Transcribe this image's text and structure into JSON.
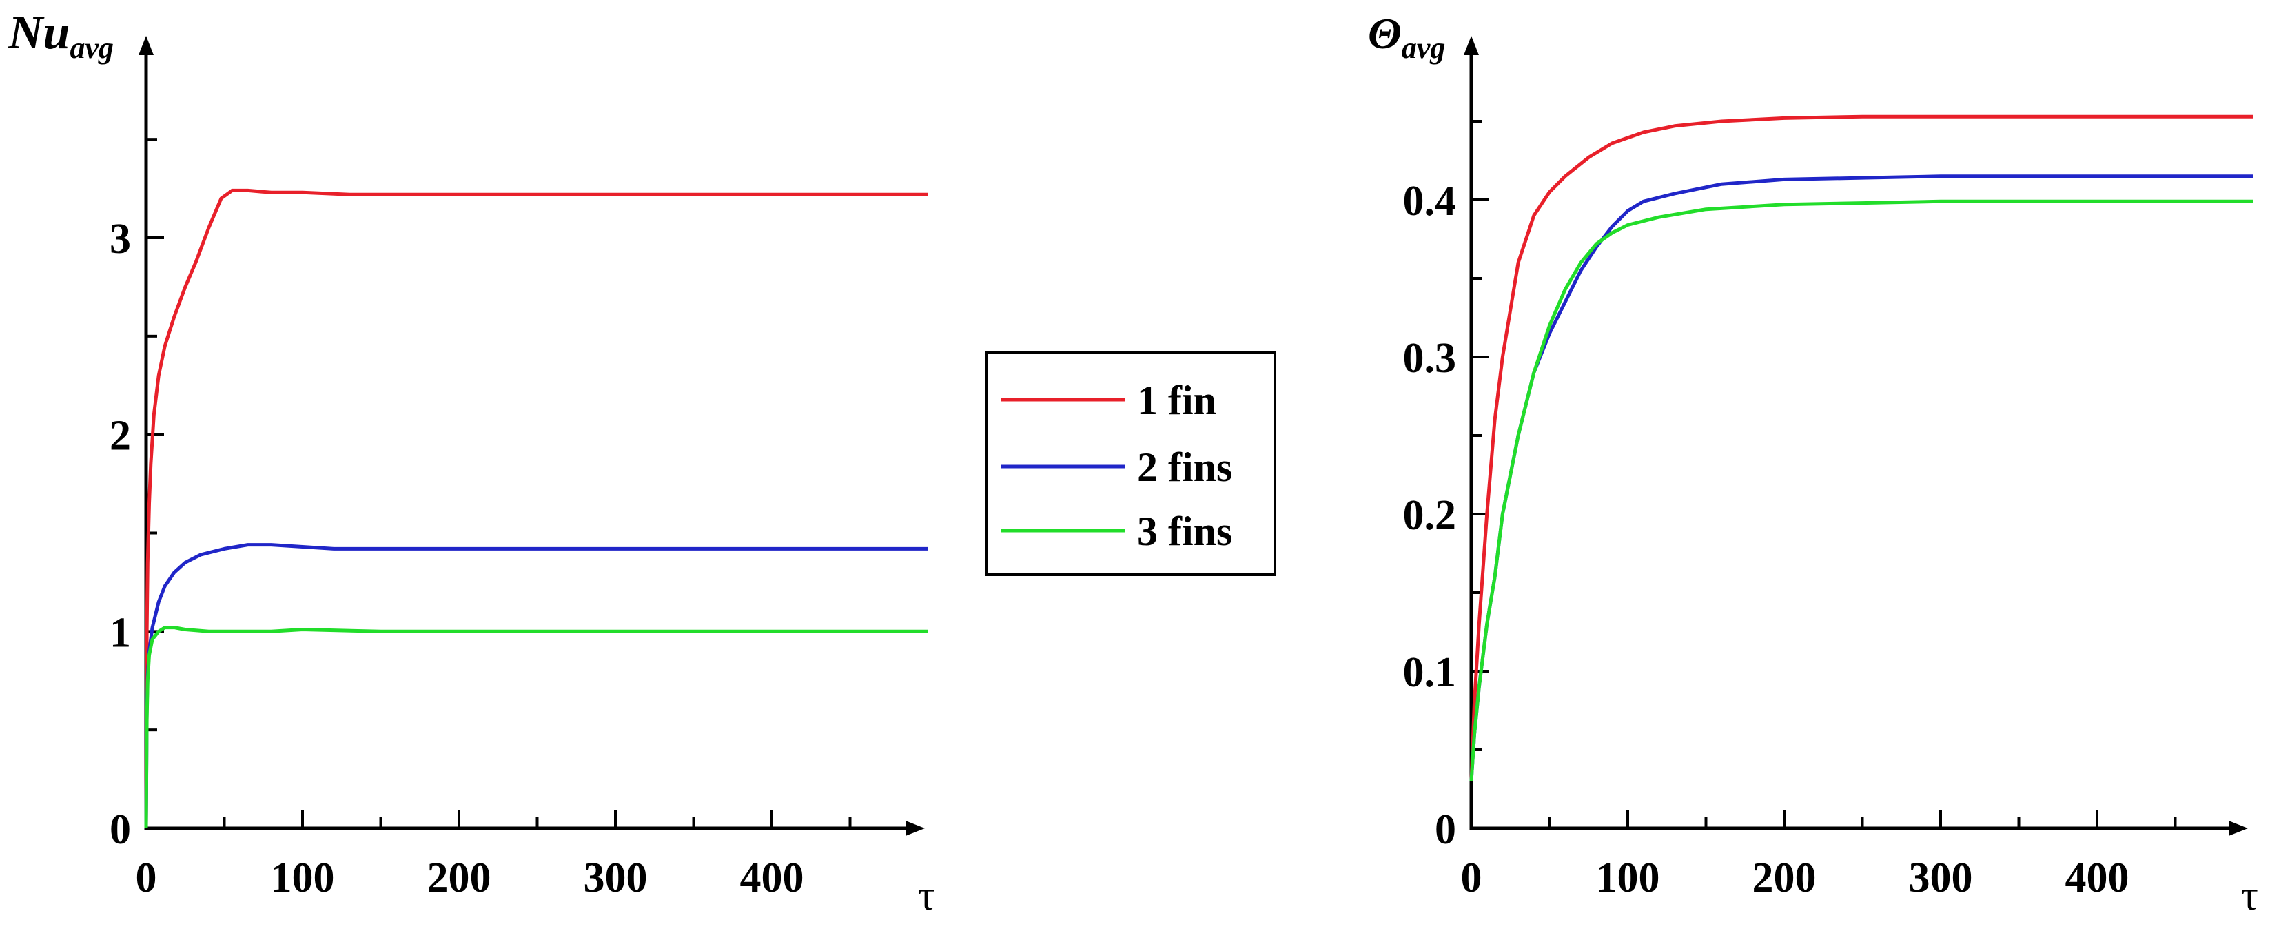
{
  "chart_data": [
    {
      "type": "line",
      "ylabel": "Nu",
      "ylabel_sub": "avg",
      "xlabel": "τ",
      "xlim": [
        0,
        500
      ],
      "ylim": [
        0,
        4
      ],
      "xticks": [
        "0",
        "100",
        "200",
        "300",
        "400"
      ],
      "xtick_values": [
        0,
        100,
        200,
        300,
        400
      ],
      "yticks": [
        "0",
        "1",
        "2",
        "3"
      ],
      "ytick_values": [
        0,
        1,
        2,
        3
      ],
      "series": [
        {
          "name": "1 fin",
          "color": "#e8202a",
          "x": [
            0,
            0.5,
            1,
            2,
            3,
            5,
            8,
            12,
            18,
            25,
            32,
            40,
            48,
            55,
            65,
            80,
            100,
            130,
            200,
            300,
            400,
            500
          ],
          "y": [
            0,
            1.0,
            1.35,
            1.65,
            1.85,
            2.1,
            2.3,
            2.45,
            2.6,
            2.75,
            2.88,
            3.05,
            3.2,
            3.24,
            3.24,
            3.23,
            3.23,
            3.22,
            3.22,
            3.22,
            3.22,
            3.22
          ]
        },
        {
          "name": "2 fins",
          "color": "#2026c8",
          "x": [
            0,
            0.5,
            1,
            2,
            4,
            8,
            12,
            18,
            25,
            35,
            50,
            65,
            80,
            100,
            120,
            150,
            200,
            300,
            400,
            500
          ],
          "y": [
            0,
            0.6,
            0.78,
            0.9,
            1.02,
            1.15,
            1.23,
            1.3,
            1.35,
            1.39,
            1.42,
            1.44,
            1.44,
            1.43,
            1.42,
            1.42,
            1.42,
            1.42,
            1.42,
            1.42
          ]
        },
        {
          "name": "3 fins",
          "color": "#22dd2a",
          "x": [
            0,
            0.5,
            1,
            2,
            4,
            8,
            12,
            18,
            25,
            40,
            60,
            80,
            100,
            150,
            200,
            300,
            400,
            500
          ],
          "y": [
            0,
            0.55,
            0.75,
            0.88,
            0.96,
            1.0,
            1.02,
            1.02,
            1.01,
            1.0,
            1.0,
            1.0,
            1.01,
            1.0,
            1.0,
            1.0,
            1.0,
            1.0
          ]
        }
      ]
    },
    {
      "type": "line",
      "ylabel": "Θ",
      "ylabel_sub": "avg",
      "xlabel": "τ",
      "xlim": [
        0,
        500
      ],
      "ylim": [
        0,
        0.5
      ],
      "xticks": [
        "0",
        "100",
        "200",
        "300",
        "400"
      ],
      "xtick_values": [
        0,
        100,
        200,
        300,
        400
      ],
      "yticks": [
        "0",
        "0.1",
        "0.2",
        "0.3",
        "0.4"
      ],
      "ytick_values": [
        0,
        0.1,
        0.2,
        0.3,
        0.4
      ],
      "series": [
        {
          "name": "1 fin",
          "color": "#e8202a",
          "x": [
            0,
            2,
            5,
            10,
            15,
            20,
            30,
            40,
            50,
            60,
            75,
            90,
            110,
            130,
            160,
            200,
            250,
            300,
            400,
            500
          ],
          "y": [
            0.03,
            0.08,
            0.13,
            0.2,
            0.26,
            0.3,
            0.36,
            0.39,
            0.405,
            0.415,
            0.427,
            0.436,
            0.443,
            0.447,
            0.45,
            0.452,
            0.453,
            0.453,
            0.453,
            0.453
          ]
        },
        {
          "name": "2 fins",
          "color": "#2026c8",
          "x": [
            0,
            2,
            5,
            10,
            15,
            20,
            30,
            40,
            50,
            60,
            70,
            80,
            90,
            100,
            110,
            130,
            160,
            200,
            250,
            300,
            400,
            500
          ],
          "y": [
            0.03,
            0.06,
            0.09,
            0.13,
            0.16,
            0.2,
            0.25,
            0.29,
            0.315,
            0.335,
            0.355,
            0.37,
            0.383,
            0.393,
            0.399,
            0.404,
            0.41,
            0.413,
            0.414,
            0.415,
            0.415,
            0.415
          ]
        },
        {
          "name": "3 fins",
          "color": "#22dd2a",
          "x": [
            0,
            2,
            5,
            10,
            15,
            20,
            30,
            40,
            50,
            60,
            70,
            80,
            90,
            100,
            120,
            150,
            200,
            250,
            300,
            400,
            500
          ],
          "y": [
            0.03,
            0.06,
            0.09,
            0.13,
            0.16,
            0.2,
            0.25,
            0.29,
            0.32,
            0.343,
            0.36,
            0.372,
            0.379,
            0.384,
            0.389,
            0.394,
            0.397,
            0.398,
            0.399,
            0.399,
            0.399
          ]
        }
      ]
    }
  ],
  "legend": {
    "entries": [
      {
        "label": "1 fin",
        "color": "#e8202a"
      },
      {
        "label": "2 fins",
        "color": "#2026c8"
      },
      {
        "label": "3 fins",
        "color": "#22dd2a"
      }
    ]
  }
}
